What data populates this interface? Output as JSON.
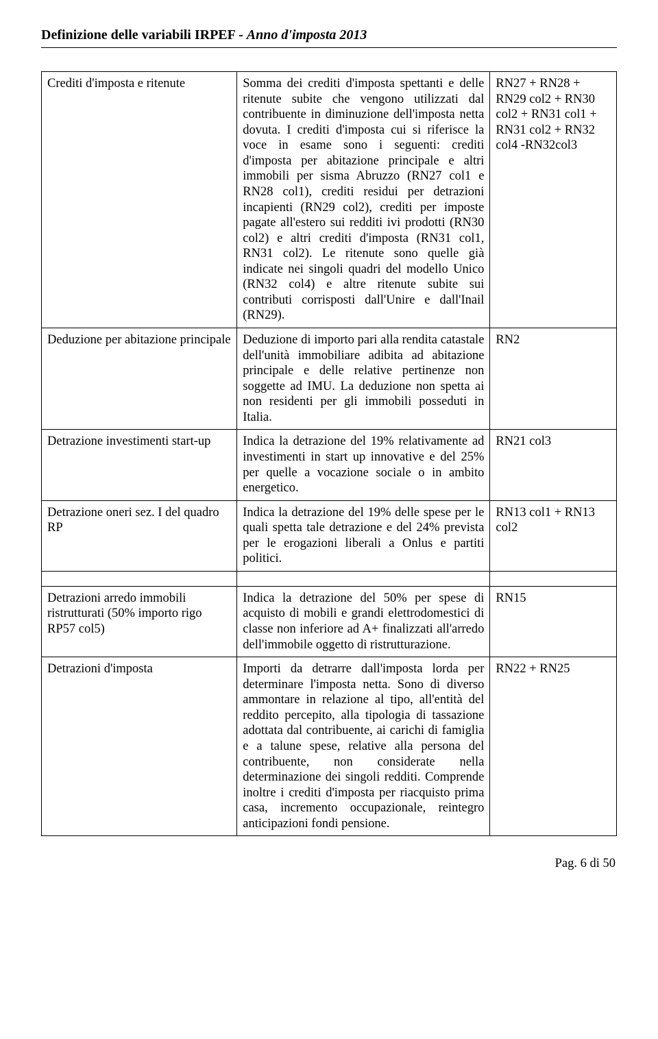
{
  "header": {
    "title_bold": "Definizione delle variabili IRPEF - ",
    "title_italic": "Anno d'imposta 2013"
  },
  "rows": [
    {
      "term": "Crediti d'imposta e ritenute",
      "desc": "Somma dei crediti d'imposta spettanti e delle ritenute subite che vengono utilizzati dal contribuente in diminuzione dell'imposta netta dovuta. I crediti d'imposta cui si riferisce la voce in esame sono i seguenti: crediti d'imposta per abitazione principale e altri immobili per sisma Abruzzo (RN27 col1 e RN28 col1), crediti residui per detrazioni incapienti (RN29 col2), crediti per imposte pagate all'estero sui redditi ivi prodotti (RN30 col2) e altri crediti d'imposta (RN31 col1, RN31 col2). Le ritenute sono quelle già indicate nei singoli quadri del modello Unico (RN32 col4) e altre ritenute subite sui contributi corrisposti dall'Unire e dall'Inail (RN29).",
      "code": "RN27 + RN28 + RN29 col2 + RN30 col2 + RN31 col1 + RN31 col2 + RN32 col4 -RN32col3"
    },
    {
      "term": "Deduzione per abitazione principale",
      "desc": "Deduzione di importo pari alla rendita catastale dell'unità immobiliare adibita ad abitazione principale e delle relative pertinenze non soggette ad IMU. La deduzione non spetta ai non residenti per gli immobili posseduti in Italia.",
      "code": "RN2"
    },
    {
      "term": "Detrazione investimenti start-up",
      "desc": "Indica la detrazione del 19% relativamente ad investimenti in start up innovative e del 25% per quelle a vocazione sociale o in ambito energetico.",
      "code": "RN21 col3"
    },
    {
      "term": "Detrazione oneri sez. I del quadro RP",
      "desc": "Indica la detrazione del 19% delle spese per le quali spetta tale detrazione e del 24% prevista per le erogazioni liberali a Onlus e partiti politici.",
      "code": "RN13 col1 + RN13 col2"
    },
    {
      "term": "Detrazioni arredo immobili ristrutturati (50% importo rigo RP57 col5)",
      "desc": "Indica la detrazione del 50% per spese di acquisto di mobili e grandi elettrodomestici di classe non inferiore ad A+ finalizzati all'arredo dell'immobile oggetto di ristrutturazione.",
      "code": "RN15"
    },
    {
      "term": "Detrazioni d'imposta",
      "desc": "Importi da detrarre dall'imposta lorda per determinare l'imposta netta. Sono di diverso ammontare in relazione al tipo, all'entità del reddito percepito, alla tipologia di tassazione adottata dal contribuente, ai carichi di famiglia e a talune spese, relative alla persona del contribuente, non considerate nella determinazione dei singoli redditi. Comprende inoltre i crediti d'imposta per riacquisto prima casa, incremento occupazionale, reintegro anticipazioni fondi pensione.",
      "code": "RN22  + RN25"
    }
  ],
  "footer": {
    "text": "Pag. 6 di 50"
  }
}
